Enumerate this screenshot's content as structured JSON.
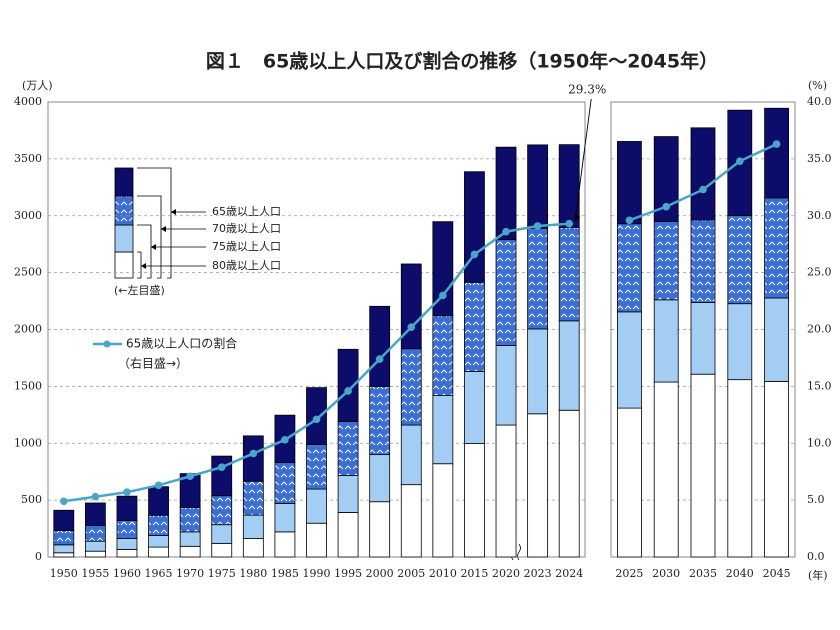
{
  "chart_data": [
    {
      "type": "bar",
      "stacked": true,
      "title": "図１　65歳以上人口及び割合の推移（1950年～2045年）",
      "ylabel": "(万人)",
      "annotation": "29.3%",
      "legend_note": "(←左目盛)",
      "line_note": "（右目盛→）",
      "categories": [
        "1950",
        "1955",
        "1960",
        "1965",
        "1970",
        "1975",
        "1980",
        "1985",
        "1990",
        "1995",
        "2000",
        "2005",
        "2010",
        "2015",
        "2020",
        "2023",
        "2024"
      ],
      "ylim": [
        0,
        4000
      ],
      "yticks": [
        0,
        500,
        1000,
        1500,
        2000,
        2500,
        3000,
        3500,
        4000
      ],
      "y2lim": [
        0,
        40
      ],
      "grid": true,
      "series": [
        {
          "name": "80歳以上人口",
          "color": "#ffffff",
          "values": [
            37,
            51,
            67,
            87,
            94,
            120,
            162,
            221,
            297,
            392,
            486,
            636,
            820,
            997,
            1160,
            1259,
            1290
          ]
        },
        {
          "name": "75歳以上人口",
          "color": "#a3cdf3",
          "values": [
            70,
            88,
            96,
            102,
            127,
            164,
            206,
            250,
            300,
            325,
            414,
            524,
            599,
            635,
            700,
            746,
            786
          ]
        },
        {
          "name": "70歳以上人口",
          "color": "#3b6fd6",
          "pattern": "chevron",
          "values": [
            127,
            139,
            157,
            178,
            215,
            255,
            298,
            359,
            392,
            474,
            600,
            671,
            702,
            783,
            930,
            884,
            822
          ]
        },
        {
          "name": "65歳以上人口",
          "color": "#0c0c6b",
          "values": [
            177,
            197,
            215,
            251,
            297,
            348,
            399,
            417,
            500,
            635,
            704,
            745,
            827,
            972,
            813,
            734,
            727
          ]
        },
        {
          "name": "65歳以上人口の割合",
          "type": "line",
          "axis": "y2",
          "color": "#4aa6c9",
          "values": [
            4.9,
            5.3,
            5.7,
            6.3,
            7.1,
            7.9,
            9.1,
            10.3,
            12.1,
            14.6,
            17.4,
            20.2,
            23.0,
            26.6,
            28.6,
            29.1,
            29.3
          ]
        }
      ]
    },
    {
      "type": "bar",
      "stacked": true,
      "xlabel": "(年)",
      "y2label": "(%)",
      "categories": [
        "2025",
        "2030",
        "2035",
        "2040",
        "2045"
      ],
      "ylim": [
        0,
        4000
      ],
      "y2lim": [
        0,
        40
      ],
      "y2ticks": [
        {
          "value": 0,
          "label": "0.0"
        },
        {
          "value": 5,
          "label": "5.0"
        },
        {
          "value": 10,
          "label": "10.0"
        },
        {
          "value": 15,
          "label": "15.0"
        },
        {
          "value": 20,
          "label": "20.0"
        },
        {
          "value": 25,
          "label": "25.0"
        },
        {
          "value": 30,
          "label": "30.0"
        },
        {
          "value": 35,
          "label": "35.0"
        },
        {
          "value": 40,
          "label": "40.0"
        }
      ],
      "grid": true,
      "series": [
        {
          "name": "80歳以上人口",
          "color": "#ffffff",
          "values": [
            1309,
            1538,
            1607,
            1559,
            1544
          ]
        },
        {
          "name": "75歳以上人口",
          "color": "#a3cdf3",
          "values": [
            846,
            723,
            630,
            668,
            733
          ]
        },
        {
          "name": "70歳以上人口",
          "color": "#3b6fd6",
          "pattern": "chevron",
          "values": [
            775,
            689,
            726,
            776,
            880
          ]
        },
        {
          "name": "65歳以上人口",
          "color": "#0c0c6b",
          "values": [
            723,
            746,
            810,
            925,
            788
          ]
        },
        {
          "name": "65歳以上人口の割合",
          "type": "line",
          "axis": "y2",
          "color": "#4aa6c9",
          "values": [
            29.6,
            30.8,
            32.3,
            34.8,
            36.3
          ]
        }
      ]
    }
  ]
}
